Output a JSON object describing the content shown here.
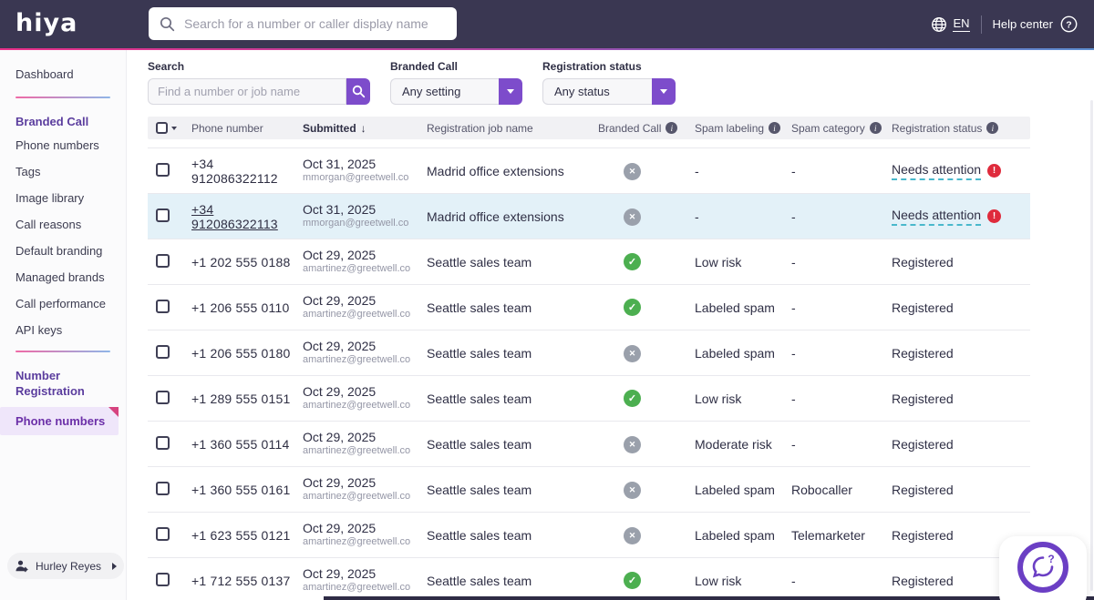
{
  "topbar": {
    "logo": "hiya",
    "search_placeholder": "Search for a number or caller display name",
    "language": "EN",
    "help_center": "Help center"
  },
  "sidebar": {
    "dashboard": "Dashboard",
    "branded_call_section": {
      "title": "Branded Call",
      "items": [
        {
          "label": "Phone numbers"
        },
        {
          "label": "Tags"
        },
        {
          "label": "Image library"
        },
        {
          "label": "Call reasons"
        },
        {
          "label": "Default branding"
        },
        {
          "label": "Managed brands"
        },
        {
          "label": "Call performance"
        },
        {
          "label": "API keys"
        }
      ]
    },
    "number_registration_section": {
      "title": "Number Registration",
      "selected_item": "Phone numbers"
    },
    "user": "Hurley Reyes"
  },
  "filters": {
    "search": {
      "label": "Search",
      "placeholder": "Find a number or job name"
    },
    "branded_call": {
      "label": "Branded Call",
      "value": "Any setting"
    },
    "registration_status": {
      "label": "Registration status",
      "value": "Any status"
    }
  },
  "table": {
    "columns": {
      "phone": "Phone number",
      "submitted": "Submitted",
      "job_name": "Registration job name",
      "branded_call": "Branded Call",
      "spam_labeling": "Spam labeling",
      "spam_category": "Spam category",
      "registration_status": "Registration status"
    },
    "sort_arrow": "↓",
    "rows": [
      {
        "phone": "+34 912086322112",
        "phone_link": false,
        "highlighted": false,
        "submitted": "Oct 31, 2025",
        "submitted_by": "mmorgan@greetwell.co",
        "job_name": "Madrid office extensions",
        "branded_call": "cross",
        "spam_labeling": "-",
        "spam_category": "-",
        "registration_status": "Needs attention",
        "status_alert": true
      },
      {
        "phone": "+34 912086322113",
        "phone_link": true,
        "highlighted": true,
        "submitted": "Oct 31, 2025",
        "submitted_by": "mmorgan@greetwell.co",
        "job_name": "Madrid office extensions",
        "branded_call": "cross",
        "spam_labeling": "-",
        "spam_category": "-",
        "registration_status": "Needs attention",
        "status_alert": true
      },
      {
        "phone": "+1 202 555 0188",
        "phone_link": false,
        "highlighted": false,
        "submitted": "Oct 29, 2025",
        "submitted_by": "amartinez@greetwell.co",
        "job_name": "Seattle sales team",
        "branded_call": "check",
        "spam_labeling": "Low risk",
        "spam_category": "-",
        "registration_status": "Registered",
        "status_alert": false
      },
      {
        "phone": "+1 206 555 0110",
        "phone_link": false,
        "highlighted": false,
        "submitted": "Oct 29, 2025",
        "submitted_by": "amartinez@greetwell.co",
        "job_name": "Seattle sales team",
        "branded_call": "check",
        "spam_labeling": "Labeled spam",
        "spam_category": "-",
        "registration_status": "Registered",
        "status_alert": false
      },
      {
        "phone": "+1 206 555 0180",
        "phone_link": false,
        "highlighted": false,
        "submitted": "Oct 29, 2025",
        "submitted_by": "amartinez@greetwell.co",
        "job_name": "Seattle sales team",
        "branded_call": "cross",
        "spam_labeling": "Labeled spam",
        "spam_category": "-",
        "registration_status": "Registered",
        "status_alert": false
      },
      {
        "phone": "+1 289 555 0151",
        "phone_link": false,
        "highlighted": false,
        "submitted": "Oct 29, 2025",
        "submitted_by": "amartinez@greetwell.co",
        "job_name": "Seattle sales team",
        "branded_call": "check",
        "spam_labeling": "Low risk",
        "spam_category": "-",
        "registration_status": "Registered",
        "status_alert": false
      },
      {
        "phone": "+1 360 555 0114",
        "phone_link": false,
        "highlighted": false,
        "submitted": "Oct 29, 2025",
        "submitted_by": "amartinez@greetwell.co",
        "job_name": "Seattle sales team",
        "branded_call": "cross",
        "spam_labeling": "Moderate risk",
        "spam_category": "-",
        "registration_status": "Registered",
        "status_alert": false
      },
      {
        "phone": "+1 360 555 0161",
        "phone_link": false,
        "highlighted": false,
        "submitted": "Oct 29, 2025",
        "submitted_by": "amartinez@greetwell.co",
        "job_name": "Seattle sales team",
        "branded_call": "cross",
        "spam_labeling": "Labeled spam",
        "spam_category": "Robocaller",
        "registration_status": "Registered",
        "status_alert": false
      },
      {
        "phone": "+1 623 555 0121",
        "phone_link": false,
        "highlighted": false,
        "submitted": "Oct 29, 2025",
        "submitted_by": "amartinez@greetwell.co",
        "job_name": "Seattle sales team",
        "branded_call": "cross",
        "spam_labeling": "Labeled spam",
        "spam_category": "Telemarketer",
        "registration_status": "Registered",
        "status_alert": false
      },
      {
        "phone": "+1 712 555 0137",
        "phone_link": false,
        "highlighted": false,
        "submitted": "Oct 29, 2025",
        "submitted_by": "amartinez@greetwell.co",
        "job_name": "Seattle sales team",
        "branded_call": "check",
        "spam_labeling": "Low risk",
        "spam_category": "-",
        "registration_status": "Registered",
        "status_alert": false
      }
    ]
  },
  "colors": {
    "topbar_bg": "#3a3752",
    "accent_pink": "#e9308a",
    "accent_purple": "#7d4ccb",
    "sidebar_title_purple": "#5b3d9e",
    "selected_bg": "#efe6fa",
    "row_highlight": "#e3f1f8",
    "check_green": "#4caf50",
    "cross_gray": "#9aa0ab",
    "alert_red": "#df2b3c",
    "attention_underline_teal": "#49b8cc"
  }
}
